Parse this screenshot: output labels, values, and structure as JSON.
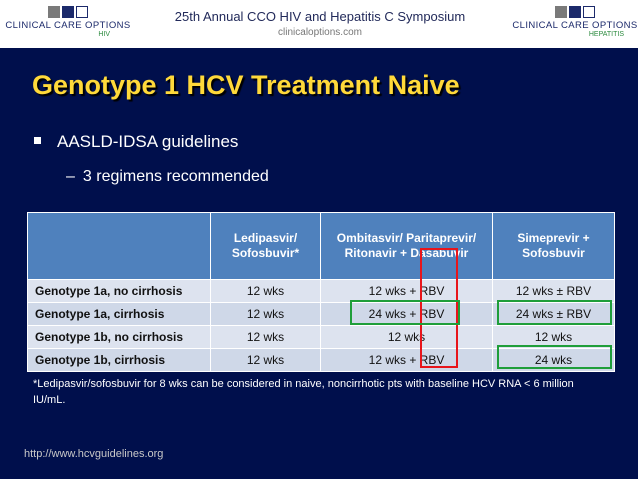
{
  "header": {
    "logo_left": {
      "name": "CLINICAL CARE OPTIONS",
      "sub": "HIV"
    },
    "logo_right": {
      "name": "CLINICAL CARE OPTIONS",
      "sub": "HEPATITIS"
    },
    "symposium": "25th Annual CCO HIV and Hepatitis C Symposium",
    "site": "clinicaloptions.com"
  },
  "slide": {
    "title": "Genotype 1 HCV Treatment Naive",
    "bullet": "AASLD-IDSA guidelines",
    "sub_bullet": "3 regimens recommended",
    "table": {
      "columns": [
        "",
        "Ledipasvir/ Sofosbuvir*",
        "Ombitasvir/ Paritaprevir/ Ritonavir + Dasabuvir",
        "Simeprevir + Sofosbuvir"
      ],
      "rows": [
        [
          "Genotype 1a, no cirrhosis",
          "12 wks",
          "12 wks + RBV",
          "12 wks ± RBV"
        ],
        [
          "Genotype 1a, cirrhosis",
          "12 wks",
          "24 wks + RBV",
          "24 wks ± RBV"
        ],
        [
          "Genotype 1b, no cirrhosis",
          "12 wks",
          "12 wks",
          "12 wks"
        ],
        [
          "Genotype 1b, cirrhosis",
          "12 wks",
          "12 wks + RBV",
          "24 wks"
        ]
      ]
    },
    "footnote": "*Ledipasvir/sofosbuvir for 8 wks can be considered in naive, noncirrhotic pts with baseline HCV RNA < 6 million IU/mL.",
    "url": "http://www.hcvguidelines.org"
  },
  "colors": {
    "slide_bg": "#000f4c",
    "title": "#ffd93a",
    "table_header": "#4f81bd",
    "highlight_red": "#e8151b",
    "highlight_green": "#1f9e3a"
  }
}
